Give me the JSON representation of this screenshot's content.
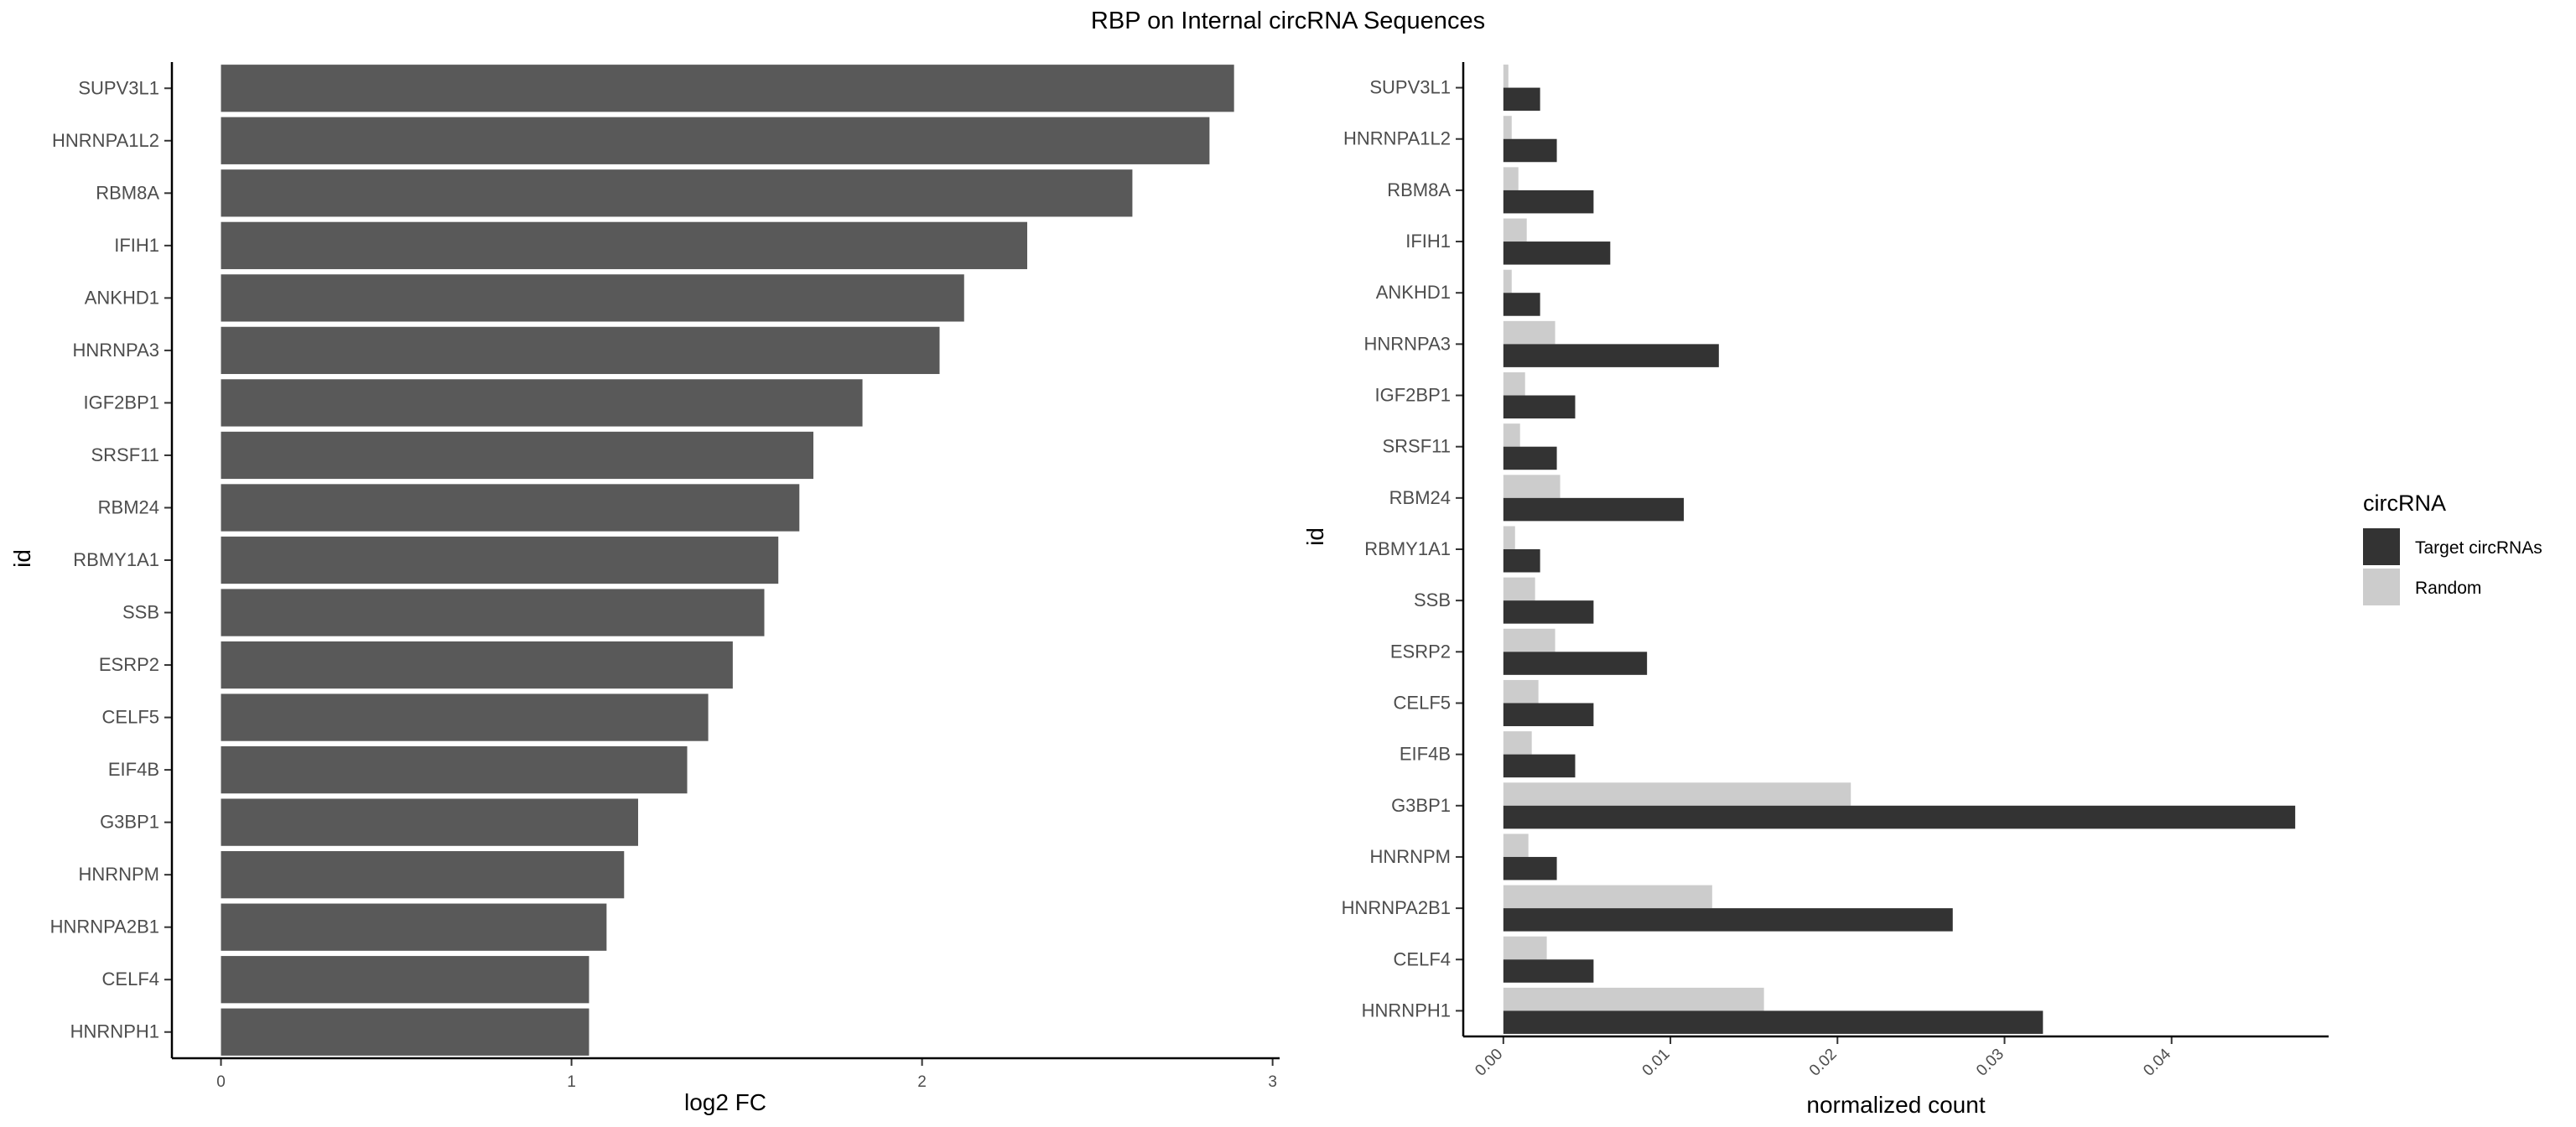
{
  "chart_data": {
    "title": "RBP on Internal circRNA Sequences",
    "categories": [
      "SUPV3L1",
      "HNRNPA1L2",
      "RBM8A",
      "IFIH1",
      "ANKHD1",
      "HNRNPA3",
      "IGF2BP1",
      "SRSF11",
      "RBM24",
      "RBMY1A1",
      "SSB",
      "ESRP2",
      "CELF5",
      "EIF4B",
      "G3BP1",
      "HNRNPM",
      "HNRNPA2B1",
      "CELF4",
      "HNRNPH1"
    ],
    "panels": [
      {
        "type": "bar",
        "orientation": "horizontal",
        "xlabel": "log2 FC",
        "ylabel": "id",
        "xlim": [
          -0.14,
          3.02
        ],
        "xticks": [
          "0",
          "1",
          "2",
          "3"
        ],
        "xtick_values": [
          0,
          1,
          2,
          3
        ],
        "bar_color": "#595959",
        "series": [
          {
            "values": [
              2.89,
              2.82,
              2.6,
              2.3,
              2.12,
              2.05,
              1.83,
              1.69,
              1.65,
              1.59,
              1.55,
              1.46,
              1.39,
              1.33,
              1.19,
              1.15,
              1.1,
              1.05,
              1.05
            ]
          }
        ]
      },
      {
        "type": "bar",
        "orientation": "horizontal",
        "grouped": true,
        "xlabel": "normalized count",
        "ylabel": "id",
        "xlim": [
          -0.0024,
          0.0494
        ],
        "xticks": [
          "0.00",
          "0.01",
          "0.02",
          "0.03",
          "0.04"
        ],
        "xtick_values": [
          0,
          0.01,
          0.02,
          0.03,
          0.04
        ],
        "xtick_rotation": -45,
        "legend": {
          "title": "circRNA",
          "position": "right"
        },
        "series": [
          {
            "name": "Target circRNAs",
            "color": "#333333",
            "values": [
              0.0022,
              0.0032,
              0.0054,
              0.0064,
              0.0022,
              0.0129,
              0.0043,
              0.0032,
              0.0108,
              0.0022,
              0.0054,
              0.0086,
              0.0054,
              0.0043,
              0.0474,
              0.0032,
              0.0269,
              0.0054,
              0.0323
            ]
          },
          {
            "name": "Random",
            "color": "#cccccc",
            "values": [
              0.0003,
              0.0005,
              0.0009,
              0.0014,
              0.0005,
              0.0031,
              0.0013,
              0.001,
              0.0034,
              0.0007,
              0.0019,
              0.0031,
              0.0021,
              0.0017,
              0.0208,
              0.0015,
              0.0125,
              0.0026,
              0.0156
            ]
          }
        ]
      }
    ]
  }
}
